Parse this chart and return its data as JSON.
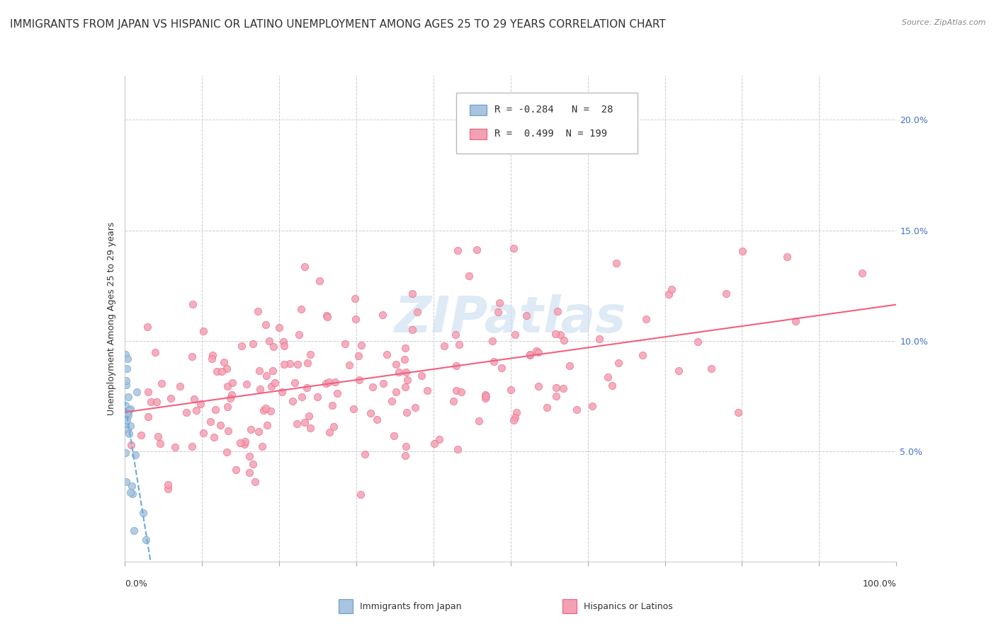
{
  "title": "IMMIGRANTS FROM JAPAN VS HISPANIC OR LATINO UNEMPLOYMENT AMONG AGES 25 TO 29 YEARS CORRELATION CHART",
  "source": "Source: ZipAtlas.com",
  "ylabel": "Unemployment Among Ages 25 to 29 years",
  "legend_R1": "-0.284",
  "legend_N1": "28",
  "legend_R2": "0.499",
  "legend_N2": "199",
  "color_japan": "#a8c4e0",
  "color_japan_dark": "#6a9cc4",
  "color_hispanic": "#f4a0b4",
  "color_hispanic_dark": "#e8607c",
  "color_japan_line": "#6aabdc",
  "color_hispanic_line": "#f06080",
  "background_color": "#ffffff",
  "watermark": "ZIPatlas",
  "title_fontsize": 11,
  "axis_label_fontsize": 9,
  "tick_fontsize": 9,
  "legend_fontsize": 10
}
